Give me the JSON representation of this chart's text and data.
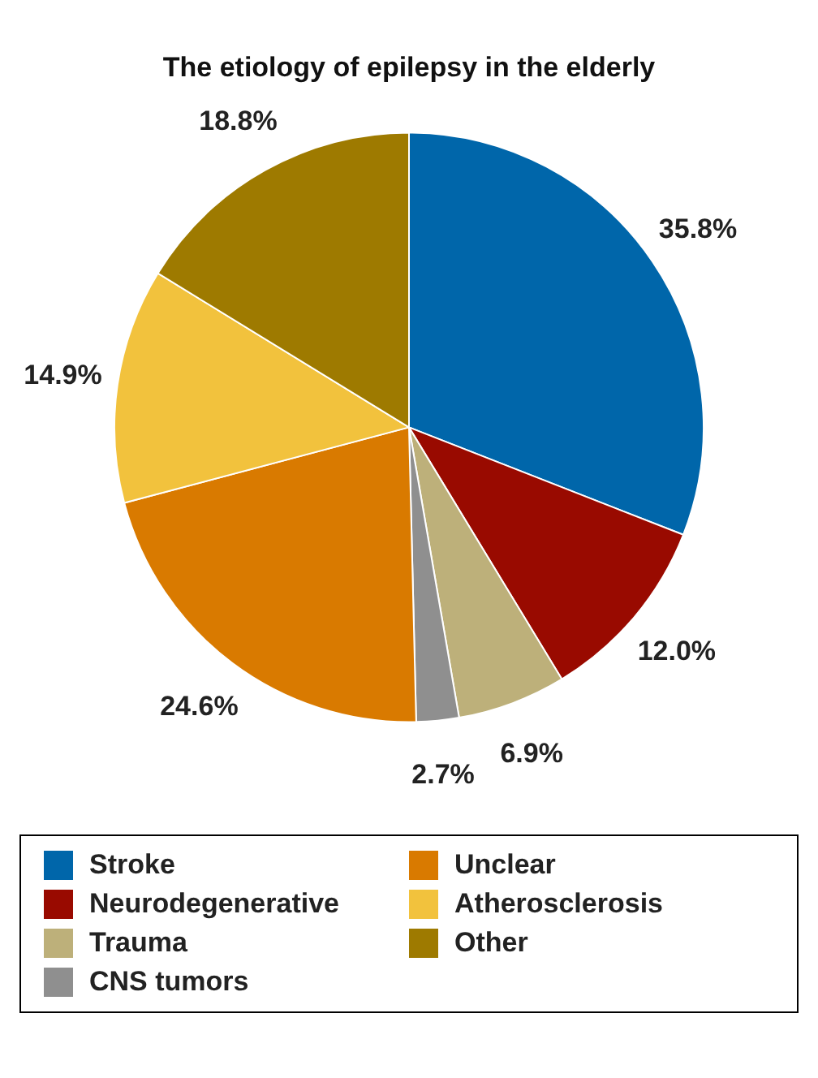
{
  "chart_data": {
    "type": "pie",
    "title": "The etiology of epilepsy in the elderly",
    "categories": [
      "Stroke",
      "Neurodegenerative",
      "Trauma",
      "CNS tumors",
      "Unclear",
      "Atherosclerosis",
      "Other"
    ],
    "values": [
      35.8,
      12.0,
      6.9,
      2.7,
      24.6,
      14.9,
      18.8
    ],
    "value_labels": [
      "35.8%",
      "12.0%",
      "6.9%",
      "2.7%",
      "24.6%",
      "14.9%",
      "18.8%"
    ],
    "colors": [
      "#0066aa",
      "#990a00",
      "#bdb07a",
      "#8f8f8f",
      "#d97a00",
      "#f2c23d",
      "#9e7a00"
    ],
    "legend": "bottom"
  }
}
